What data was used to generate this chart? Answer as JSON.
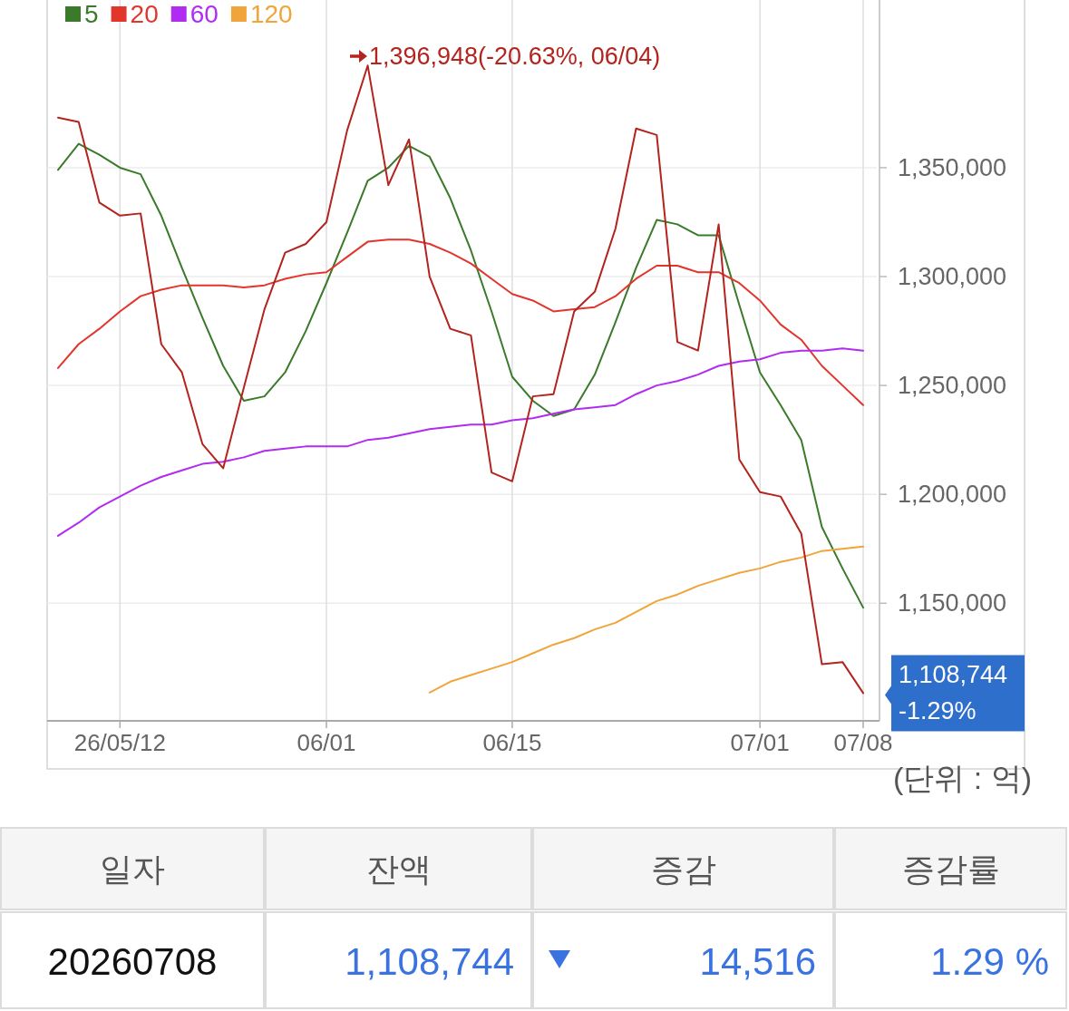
{
  "chart_data": [
    {
      "type": "line",
      "categories": [
        null,
        null,
        null,
        "26/05/12",
        null,
        null,
        null,
        null,
        null,
        null,
        null,
        null,
        null,
        "06/01",
        null,
        null,
        null,
        null,
        null,
        null,
        null,
        null,
        "06/15",
        null,
        null,
        null,
        null,
        null,
        null,
        null,
        null,
        null,
        null,
        null,
        "07/01",
        null,
        null,
        null,
        null,
        "07/08"
      ],
      "series": [
        {
          "name": "5",
          "color": "#3a7a2a",
          "values": [
            1349000,
            1361000,
            1356000,
            1350000,
            1347000,
            1328000,
            1304000,
            1281000,
            1259000,
            1243000,
            1245000,
            1256000,
            1275000,
            1297000,
            1320000,
            1344000,
            1350000,
            1360000,
            1355000,
            1336000,
            1312000,
            1284000,
            1254000,
            1243000,
            1236000,
            1239000,
            1255000,
            1279000,
            1304000,
            1326000,
            1324000,
            1319000,
            1319000,
            1287000,
            1256000,
            1241000,
            1225000,
            1185000,
            1166000,
            1148000
          ]
        },
        {
          "name": "20",
          "color": "#e2362d",
          "values": [
            1258000,
            1269000,
            1276000,
            1284000,
            1291000,
            1294000,
            1296000,
            1296000,
            1296000,
            1295000,
            1296000,
            1299000,
            1301000,
            1302000,
            1309000,
            1316000,
            1317000,
            1317000,
            1315000,
            1311000,
            1306000,
            1299000,
            1292000,
            1289000,
            1284000,
            1285000,
            1286000,
            1291000,
            1299000,
            1305000,
            1305000,
            1302000,
            1302000,
            1297000,
            1289000,
            1278000,
            1271000,
            1259000,
            1250000,
            1241000
          ]
        },
        {
          "name": "60",
          "color": "#b02cf2",
          "values": [
            1181000,
            1187000,
            1194000,
            1199000,
            1204000,
            1208000,
            1211000,
            1214000,
            1215000,
            1217000,
            1220000,
            1221000,
            1222000,
            1222000,
            1222000,
            1225000,
            1226000,
            1228000,
            1230000,
            1231000,
            1232000,
            1232000,
            1234000,
            1235000,
            1237000,
            1239000,
            1240000,
            1241000,
            1246000,
            1250000,
            1252000,
            1255000,
            1259000,
            1261000,
            1262000,
            1265000,
            1266000,
            1266000,
            1267000,
            1266000
          ]
        },
        {
          "name": "120",
          "color": "#f0a43a",
          "values": [
            null,
            null,
            null,
            null,
            null,
            null,
            null,
            null,
            null,
            null,
            null,
            null,
            null,
            null,
            null,
            null,
            null,
            null,
            1109000,
            1114000,
            1117000,
            1120000,
            1123000,
            1127000,
            1131000,
            1134000,
            1138000,
            1141000,
            1146000,
            1151000,
            1154000,
            1158000,
            1161000,
            1164000,
            1166000,
            1169000,
            1171000,
            1174000,
            1175000,
            1176000
          ]
        },
        {
          "color": "#b3241e",
          "values": [
            1373000,
            1371000,
            1334000,
            1328000,
            1329000,
            1269000,
            1256000,
            1223000,
            1212000,
            1249000,
            1285000,
            1311000,
            1315000,
            1325000,
            1367000,
            1396948,
            1342000,
            1363000,
            1300000,
            1276000,
            1273000,
            1210000,
            1206000,
            1245000,
            1246000,
            1284000,
            1293000,
            1322000,
            1368000,
            1365000,
            1270000,
            1266000,
            1324000,
            1216000,
            1201000,
            1199000,
            1182000,
            1122000,
            1123000,
            1108744
          ]
        }
      ],
      "ylim": [
        1096000,
        1427000
      ],
      "yticks": [
        {
          "value": 1150000,
          "label": "1,150,000"
        },
        {
          "value": 1200000,
          "label": "1,200,000"
        },
        {
          "value": 1250000,
          "label": "1,250,000"
        },
        {
          "value": 1300000,
          "label": "1,300,000"
        },
        {
          "value": 1350000,
          "label": "1,350,000"
        }
      ],
      "grid": true,
      "legend": "top left",
      "annotations": [
        "1,396,948(-20.63%, 06/04)",
        {
          "text": "1,108,744",
          "x": "07/08",
          "y": 1108744
        },
        {
          "text": "-1.29%",
          "x": "07/08",
          "y": 1108744
        },
        "(단위 : 억)"
      ]
    },
    {
      "type": "other",
      "categories": [
        "일자",
        "잔액",
        "증감",
        "증감률"
      ],
      "value_labels": [
        "20260708",
        "1,108,744",
        "14,516",
        "1.29 %"
      ]
    }
  ]
}
